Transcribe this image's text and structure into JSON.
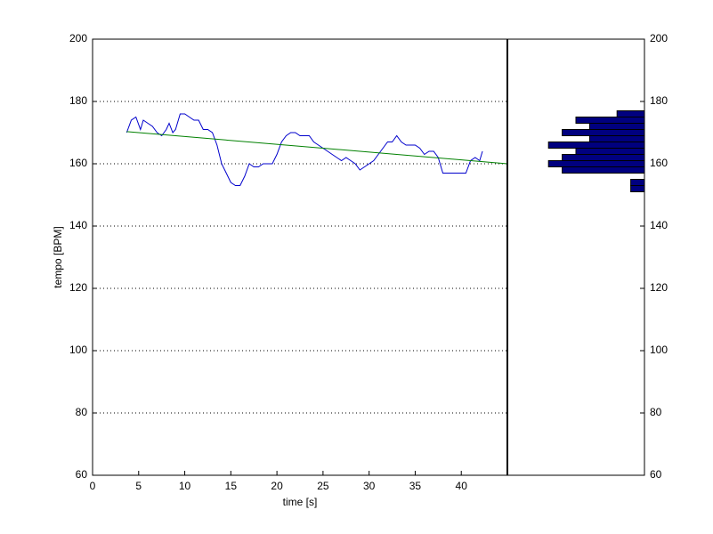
{
  "chart_data": [
    {
      "type": "line",
      "xlabel": "time [s]",
      "ylabel": "tempo [BPM]",
      "xlim": [
        0,
        45
      ],
      "ylim": [
        60,
        200
      ],
      "xticks": [
        0,
        5,
        10,
        15,
        20,
        25,
        30,
        35,
        40
      ],
      "yticks": [
        60,
        80,
        100,
        120,
        140,
        160,
        180,
        200
      ],
      "grid": true,
      "series": [
        {
          "color": "#0000cc",
          "x": [
            3.7,
            4.2,
            4.7,
            5.2,
            5.5,
            6,
            6.5,
            7,
            7.5,
            8,
            8.3,
            8.7,
            9,
            9.5,
            10,
            10.5,
            11,
            11.5,
            12,
            12.5,
            13,
            13.5,
            14,
            14.5,
            15,
            15.5,
            16,
            16.5,
            17,
            17.5,
            18,
            18.5,
            19,
            19.5,
            20,
            20.5,
            21,
            21.5,
            22,
            22.5,
            23,
            23.5,
            24,
            24.5,
            25,
            25.5,
            26,
            26.5,
            27,
            27.5,
            28,
            28.5,
            29,
            29.5,
            30,
            30.5,
            31,
            31.5,
            32,
            32.5,
            33,
            33.5,
            34,
            35,
            35.5,
            36,
            36.5,
            37,
            37.5,
            38,
            39,
            40,
            40.5,
            41,
            41.5,
            42,
            42.3
          ],
          "values": [
            170,
            174,
            175,
            171,
            174,
            173,
            172,
            170,
            169,
            171,
            173,
            170,
            171,
            176,
            176,
            175,
            174,
            174,
            171,
            171,
            170,
            166,
            160,
            157,
            154,
            153,
            153,
            156,
            160,
            159,
            159,
            160,
            160,
            160,
            163,
            167,
            169,
            170,
            170,
            169,
            169,
            169,
            167,
            166,
            165,
            164,
            163,
            162,
            161,
            162,
            161,
            160,
            158,
            159,
            160,
            161,
            163,
            165,
            167,
            167,
            169,
            167,
            166,
            166,
            165,
            163,
            164,
            164,
            162,
            157,
            157,
            157,
            157,
            161,
            162,
            161,
            164
          ]
        },
        {
          "color": "#008000",
          "x": [
            3.7,
            45
          ],
          "values": [
            170.3,
            160
          ]
        }
      ]
    },
    {
      "type": "histogram",
      "orientation": "horizontal",
      "color": "#00007f",
      "xlim": [
        0,
        10
      ],
      "ylim": [
        60,
        200
      ],
      "yticks": [
        60,
        80,
        100,
        120,
        140,
        160,
        180,
        200
      ],
      "bins": [
        151,
        153,
        155,
        157,
        159,
        161,
        163,
        165,
        167,
        169,
        171,
        173,
        175,
        177
      ],
      "values": [
        1,
        1,
        0,
        6,
        7,
        6,
        5,
        7,
        4,
        6,
        4,
        5,
        2
      ]
    }
  ]
}
